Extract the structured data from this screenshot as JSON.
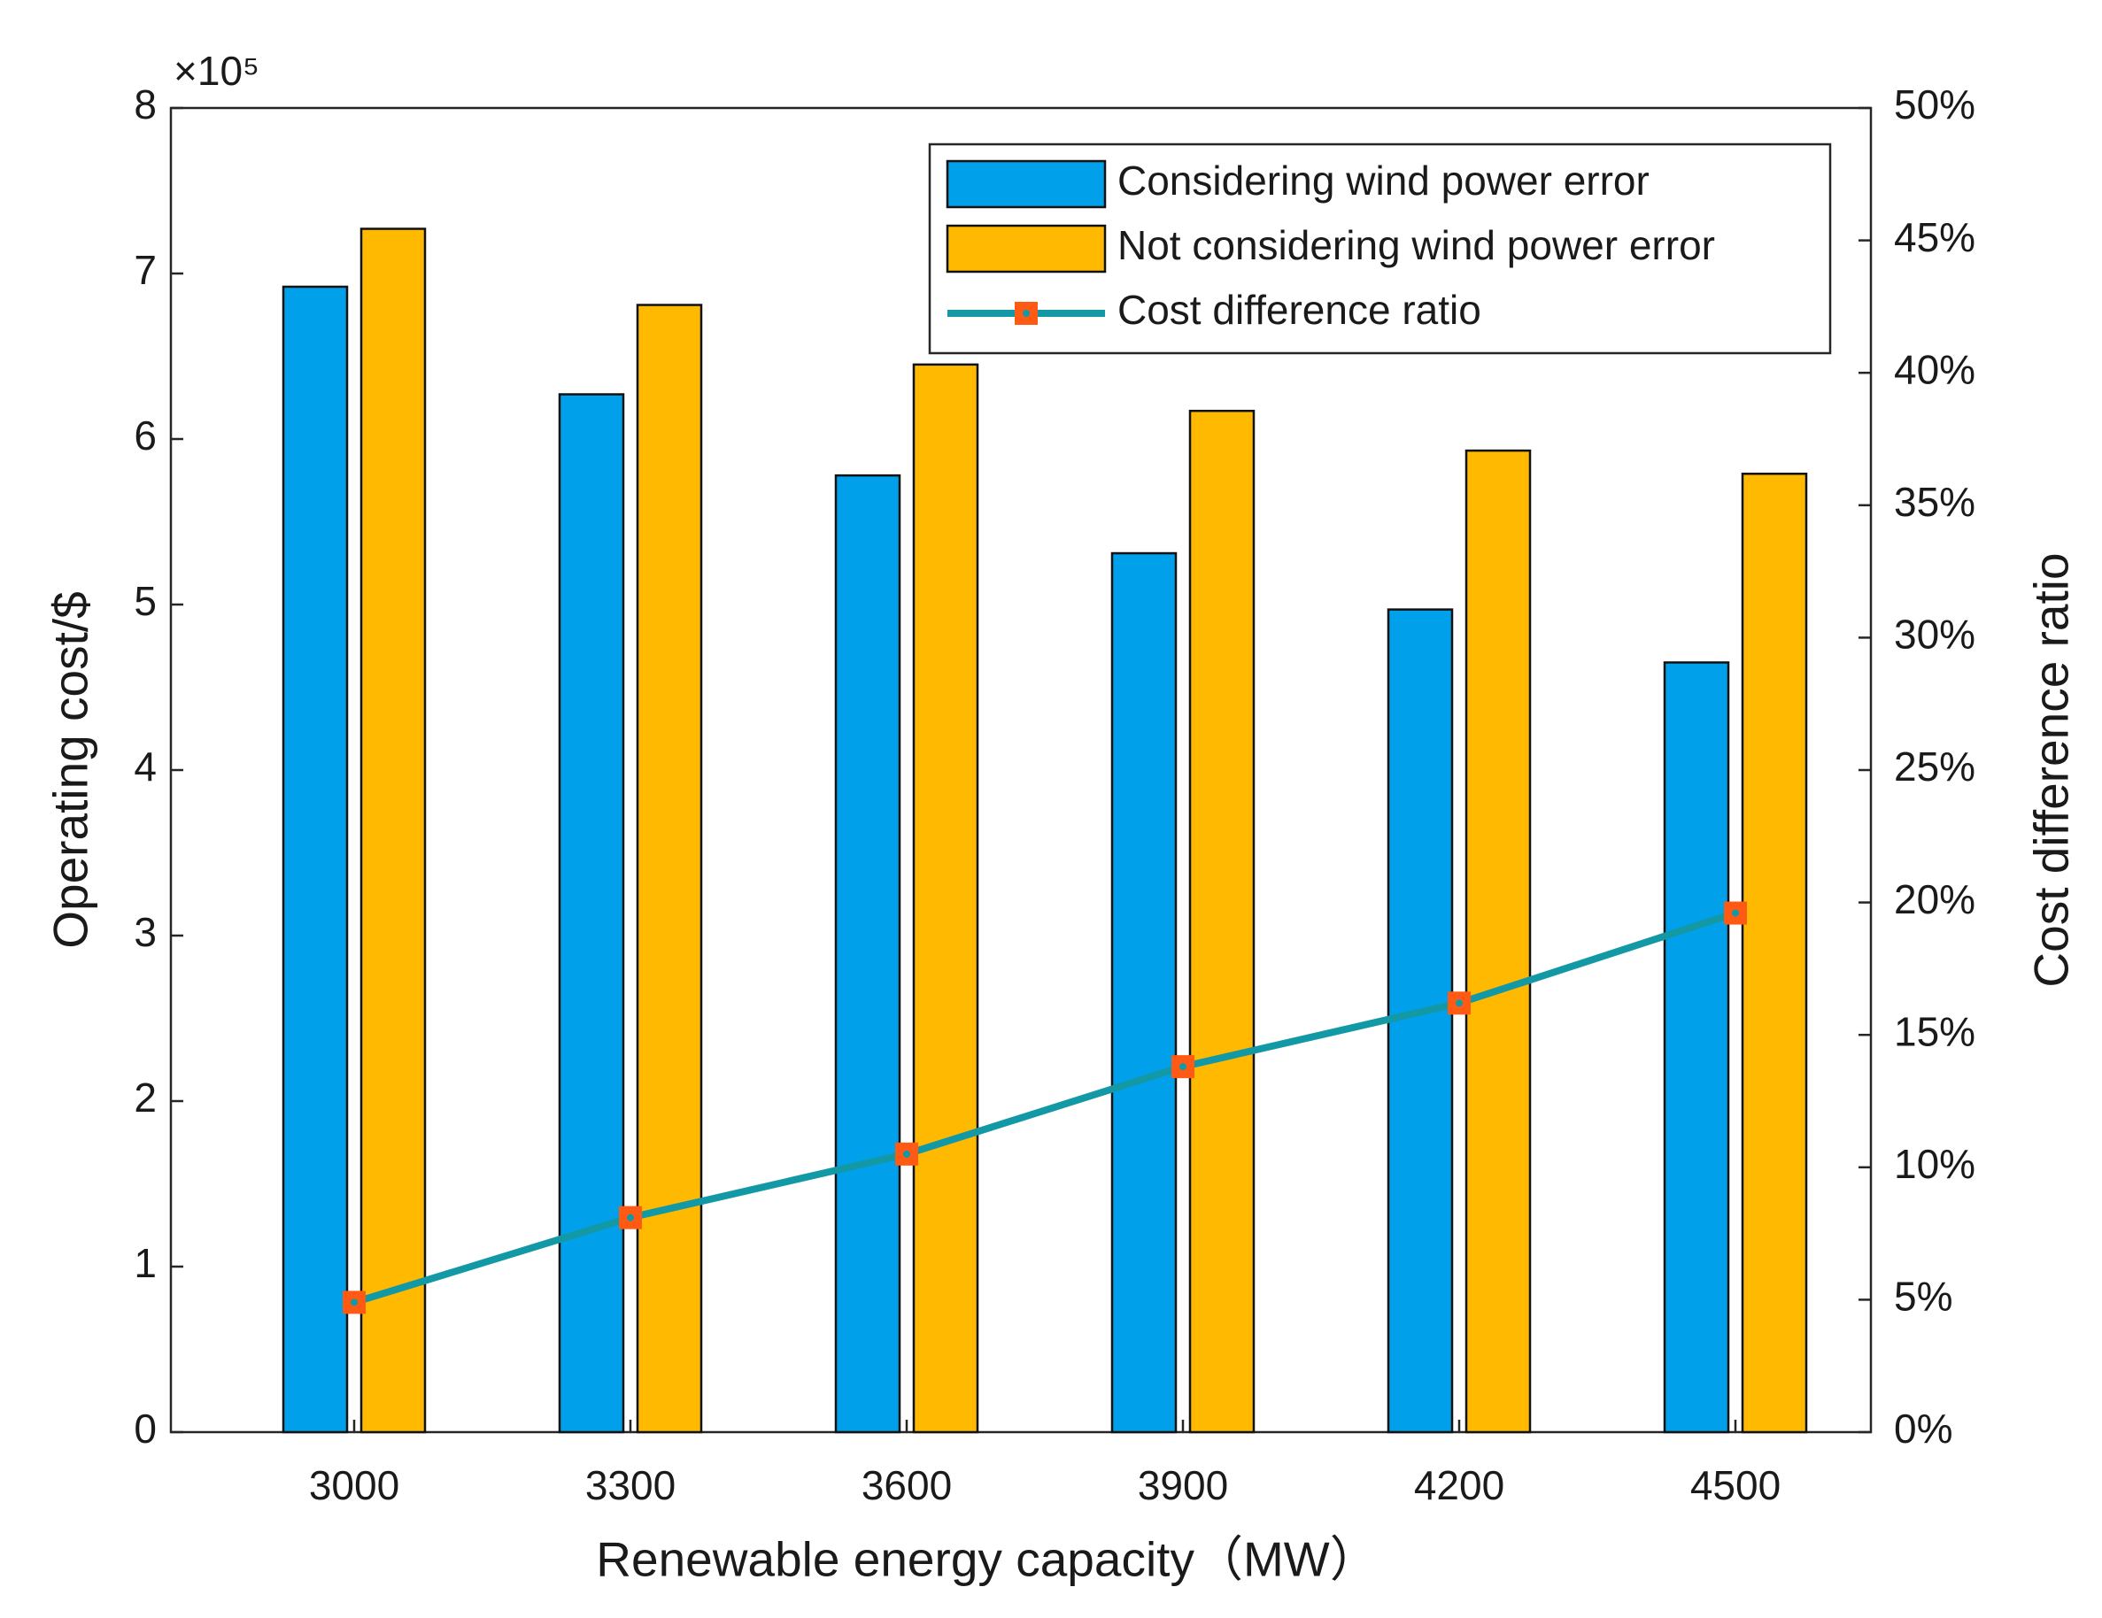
{
  "chart_data": {
    "type": "bar",
    "x_label": "Renewable energy capacity（MW）",
    "y_label": "Operating cost/$",
    "y2_label": "Cost difference ratio",
    "y_multiplier": "×10⁵",
    "categories": [
      "3000",
      "3300",
      "3600",
      "3900",
      "4200",
      "4500"
    ],
    "series": [
      {
        "name": "Considering wind power error",
        "type": "bar",
        "color": "#00a0ea",
        "values": [
          6.92,
          6.27,
          5.78,
          5.31,
          4.97,
          4.65
        ]
      },
      {
        "name": "Not considering wind power error",
        "type": "bar",
        "color": "#ffb900",
        "values": [
          7.27,
          6.81,
          6.45,
          6.17,
          5.93,
          5.79
        ]
      },
      {
        "name": "Cost difference ratio",
        "type": "line",
        "axis": "y2",
        "color": "#1399a6",
        "marker_color": "#ff5a14",
        "values": [
          4.9,
          8.1,
          10.5,
          13.8,
          16.2,
          19.6
        ]
      }
    ],
    "ylim": [
      0,
      8
    ],
    "yticks": [
      0,
      1,
      2,
      3,
      4,
      5,
      6,
      7,
      8
    ],
    "y2lim": [
      0,
      50
    ],
    "y2ticks": [
      {
        "value": 0,
        "label": "0%"
      },
      {
        "value": 5,
        "label": "5%"
      },
      {
        "value": 10,
        "label": "10%"
      },
      {
        "value": 15,
        "label": "15%"
      },
      {
        "value": 20,
        "label": "20%"
      },
      {
        "value": 25,
        "label": "25%"
      },
      {
        "value": 30,
        "label": "30%"
      },
      {
        "value": 35,
        "label": "35%"
      },
      {
        "value": 40,
        "label": "40%"
      },
      {
        "value": 45,
        "label": "45%"
      },
      {
        "value": 50,
        "label": "50%"
      }
    ],
    "legend": "upper right",
    "grid": false
  }
}
